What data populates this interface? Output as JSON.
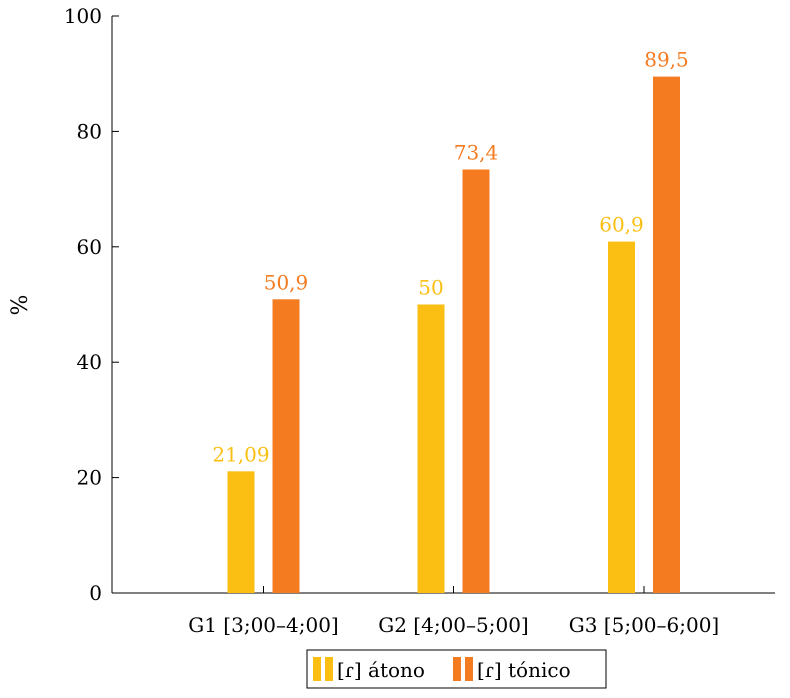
{
  "chart_data": {
    "type": "bar",
    "title": "",
    "xlabel": "",
    "ylabel": "%",
    "ylim": [
      0,
      100
    ],
    "yticks": [
      0,
      20,
      40,
      60,
      80,
      100
    ],
    "grid": false,
    "legend_position": "bottom-center",
    "categories": [
      "G1 [3;00–4;00]",
      "G2 [4;00–5;00]",
      "G3 [5;00–6;00]"
    ],
    "series": [
      {
        "name": "[ɾ] átono",
        "color": "#fbbf14",
        "values": [
          21.09,
          50,
          60.9
        ],
        "labels": [
          "21,09",
          "50",
          "60,9"
        ]
      },
      {
        "name": "[ɾ] tónico",
        "color": "#f47b20",
        "values": [
          50.9,
          73.4,
          89.5
        ],
        "labels": [
          "50,9",
          "73,4",
          "89,5"
        ]
      }
    ]
  }
}
